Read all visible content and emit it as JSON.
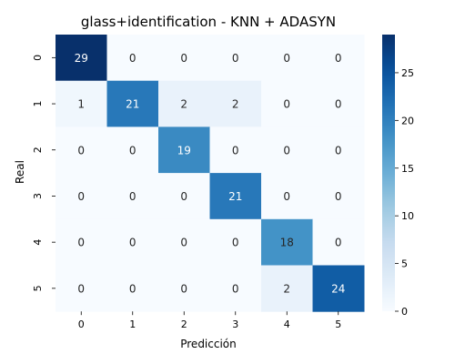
{
  "chart_data": {
    "type": "heatmap",
    "title": "glass+identification - KNN + ADASYN",
    "xlabel": "Predicción",
    "ylabel": "Real",
    "x_categories": [
      "0",
      "1",
      "2",
      "3",
      "4",
      "5"
    ],
    "y_categories": [
      "0",
      "1",
      "2",
      "3",
      "4",
      "5"
    ],
    "matrix": [
      [
        29,
        0,
        0,
        0,
        0,
        0
      ],
      [
        1,
        21,
        2,
        2,
        0,
        0
      ],
      [
        0,
        0,
        19,
        0,
        0,
        0
      ],
      [
        0,
        0,
        0,
        21,
        0,
        0
      ],
      [
        0,
        0,
        0,
        0,
        18,
        0
      ],
      [
        0,
        0,
        0,
        0,
        2,
        24
      ]
    ],
    "colorbar": {
      "min": 0,
      "max": 29,
      "ticks": [
        0,
        5,
        10,
        15,
        20,
        25
      ]
    },
    "colormap": "Blues"
  }
}
